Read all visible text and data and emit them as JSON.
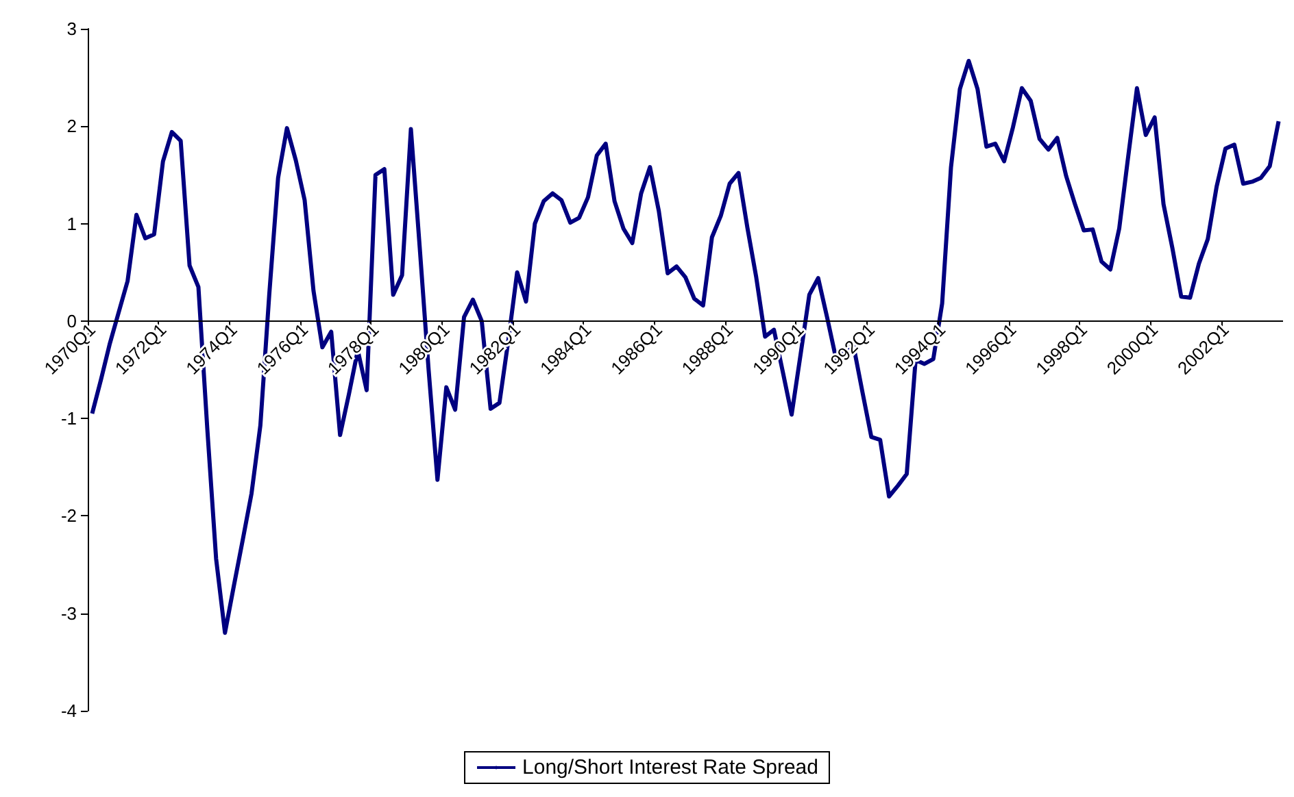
{
  "chart_data": {
    "type": "line",
    "categories": [
      "1970Q1",
      null,
      null,
      null,
      null,
      null,
      null,
      null,
      "1972Q1",
      null,
      null,
      null,
      null,
      null,
      null,
      null,
      "1974Q1",
      null,
      null,
      null,
      null,
      null,
      null,
      null,
      "1976Q1",
      null,
      null,
      null,
      null,
      null,
      null,
      null,
      "1978Q1",
      null,
      null,
      null,
      null,
      null,
      null,
      null,
      "1980Q1",
      null,
      null,
      null,
      null,
      null,
      null,
      null,
      "1982Q1",
      null,
      null,
      null,
      null,
      null,
      null,
      null,
      "1984Q1",
      null,
      null,
      null,
      null,
      null,
      null,
      null,
      "1986Q1",
      null,
      null,
      null,
      null,
      null,
      null,
      null,
      "1988Q1",
      null,
      null,
      null,
      null,
      null,
      null,
      null,
      "1990Q1",
      null,
      null,
      null,
      null,
      null,
      null,
      null,
      "1992Q1",
      null,
      null,
      null,
      null,
      null,
      null,
      null,
      "1994Q1",
      null,
      null,
      null,
      null,
      null,
      null,
      null,
      "1996Q1",
      null,
      null,
      null,
      null,
      null,
      null,
      null,
      "1998Q1",
      null,
      null,
      null,
      null,
      null,
      null,
      null,
      "2000Q1",
      null,
      null,
      null,
      null,
      null,
      null,
      null,
      "2002Q1",
      null,
      null,
      null,
      null,
      null,
      null
    ],
    "series": [
      {
        "name": "Long/Short Interest Rate Spread",
        "color": "#000080",
        "values": [
          -0.95,
          -0.6,
          -0.23,
          0.09,
          0.41,
          1.09,
          0.85,
          0.89,
          1.64,
          1.94,
          1.85,
          0.57,
          0.35,
          -1.1,
          -2.44,
          -3.2,
          -2.72,
          -2.25,
          -1.77,
          -1.07,
          0.27,
          1.47,
          1.98,
          1.65,
          1.24,
          0.31,
          -0.27,
          -0.11,
          -1.17,
          -0.75,
          -0.3,
          -0.71,
          1.5,
          1.56,
          0.27,
          0.47,
          1.97,
          0.75,
          -0.5,
          -1.63,
          -0.68,
          -0.91,
          0.04,
          0.22,
          0.0,
          -0.9,
          -0.84,
          -0.2,
          0.5,
          0.2,
          1.0,
          1.23,
          1.31,
          1.24,
          1.01,
          1.06,
          1.27,
          1.7,
          1.82,
          1.23,
          0.95,
          0.8,
          1.31,
          1.58,
          1.13,
          0.49,
          0.56,
          0.45,
          0.23,
          0.16,
          0.86,
          1.08,
          1.41,
          1.52,
          0.96,
          0.45,
          -0.16,
          -0.09,
          -0.52,
          -0.96,
          -0.35,
          0.27,
          0.44,
          0.04,
          -0.38,
          -0.28,
          -0.26,
          -0.73,
          -1.19,
          -1.22,
          -1.8,
          -1.69,
          -1.57,
          -0.4,
          -0.44,
          -0.39,
          0.18,
          1.58,
          2.38,
          2.67,
          2.38,
          1.79,
          1.82,
          1.64,
          1.99,
          2.39,
          2.26,
          1.87,
          1.76,
          1.88,
          1.49,
          1.2,
          0.93,
          0.94,
          0.61,
          0.53,
          0.95,
          1.68,
          2.39,
          1.91,
          2.09,
          1.2,
          0.75,
          0.25,
          0.24,
          0.59,
          0.84,
          1.38,
          1.77,
          1.81,
          1.41,
          1.43,
          1.47,
          1.59,
          2.05
        ]
      }
    ],
    "ylim": [
      -4,
      3
    ],
    "yticks": [
      -4,
      -3,
      -2,
      -1,
      0,
      1,
      2,
      3
    ],
    "grid": false,
    "legend": "bottom",
    "marker": "none",
    "line_style": "solid"
  }
}
